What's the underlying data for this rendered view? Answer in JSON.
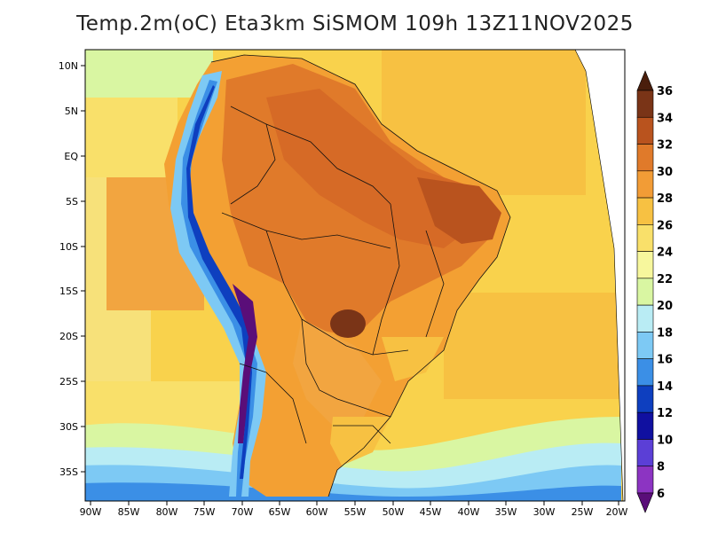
{
  "title": "Temp.2m(oC) Eta3km SiSMOM 109h 13Z11NOV2025",
  "map": {
    "lat_ticks": [
      "10N",
      "5N",
      "EQ",
      "5S",
      "10S",
      "15S",
      "20S",
      "25S",
      "30S",
      "35S"
    ],
    "lon_ticks": [
      "90W",
      "85W",
      "80W",
      "75W",
      "70W",
      "65W",
      "60W",
      "55W",
      "50W",
      "45W",
      "40W",
      "35W",
      "30W",
      "25W",
      "20W"
    ]
  },
  "colorbar": {
    "labels": [
      "36",
      "34",
      "32",
      "30",
      "28",
      "26",
      "24",
      "22",
      "20",
      "18",
      "16",
      "14",
      "12",
      "10",
      "8",
      "6"
    ],
    "colors": [
      "#4a1e0c",
      "#7a3417",
      "#b9531e",
      "#e07a2a",
      "#f29c36",
      "#f7c142",
      "#f9e06a",
      "#f7f79d",
      "#d9f6a2",
      "#b9ecf4",
      "#7dc9f4",
      "#3b8fe6",
      "#0e3fbf",
      "#1010a0",
      "#5b3fd6",
      "#8c34c2",
      "#5a0e79"
    ]
  }
}
